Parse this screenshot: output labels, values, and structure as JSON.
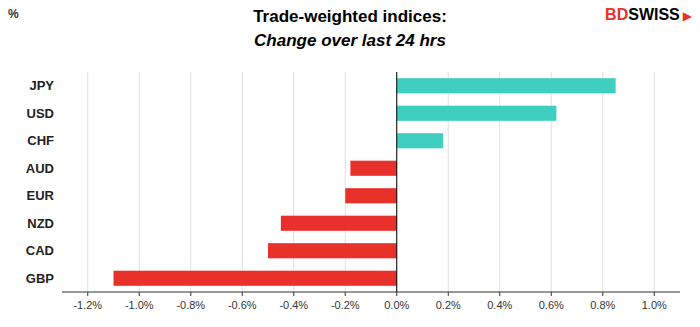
{
  "chart_data": {
    "type": "bar",
    "orientation": "horizontal",
    "title": "Trade-weighted indices:",
    "subtitle": "Change over last 24 hrs",
    "ylabel": "%",
    "categories": [
      "GBP",
      "CAD",
      "NZD",
      "EUR",
      "AUD",
      "CHF",
      "USD",
      "JPY"
    ],
    "values": [
      -1.1,
      -0.5,
      -0.45,
      -0.2,
      -0.18,
      0.18,
      0.62,
      0.85
    ],
    "colors": [
      "#e8312a",
      "#e8312a",
      "#e8312a",
      "#e8312a",
      "#e8312a",
      "#3ecfc0",
      "#3ecfc0",
      "#3ecfc0"
    ],
    "xlim": [
      -1.3,
      1.1
    ],
    "xticks": [
      {
        "value": -1.2,
        "label": "-1.2%"
      },
      {
        "value": -1.0,
        "label": "-1.0%"
      },
      {
        "value": -0.8,
        "label": "-0.8%"
      },
      {
        "value": -0.6,
        "label": "-0.6%"
      },
      {
        "value": -0.4,
        "label": "-0.4%"
      },
      {
        "value": -0.2,
        "label": "-0.2%"
      },
      {
        "value": 0.0,
        "label": "0.0%"
      },
      {
        "value": 0.2,
        "label": "0.2%"
      },
      {
        "value": 0.4,
        "label": "0.4%"
      },
      {
        "value": 0.6,
        "label": "0.6%"
      },
      {
        "value": 0.8,
        "label": "0.8%"
      },
      {
        "value": 1.0,
        "label": "1.0%"
      }
    ],
    "grid": true,
    "annotations": [
      {
        "text": "BD",
        "color": "#e8312a"
      },
      {
        "text": "SWISS",
        "color": "#000000"
      },
      {
        "text": "▶",
        "color": "#e8312a"
      }
    ]
  }
}
